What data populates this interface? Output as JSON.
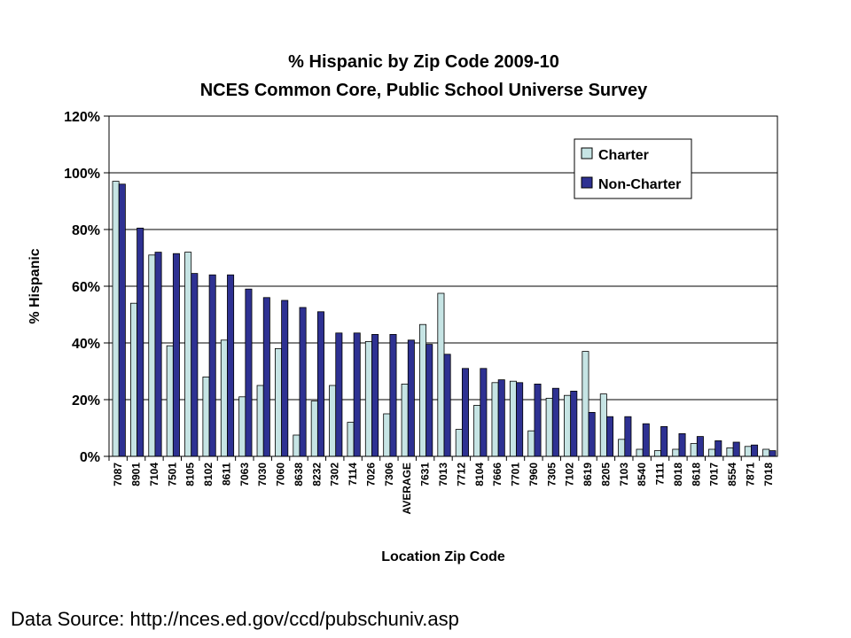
{
  "chart_data": {
    "type": "bar",
    "title": "% Hispanic by Zip Code 2009-10",
    "subtitle": "NCES Common Core, Public School Universe Survey",
    "xlabel": "Location Zip Code",
    "ylabel": "% Hispanic",
    "ylim": [
      0,
      120
    ],
    "yticks": [
      "0%",
      "20%",
      "40%",
      "60%",
      "80%",
      "100%",
      "120%"
    ],
    "grid": true,
    "legend": "top-right",
    "categories": [
      "7087",
      "8901",
      "7104",
      "7501",
      "8105",
      "8102",
      "8611",
      "7063",
      "7030",
      "7060",
      "8638",
      "8232",
      "7302",
      "7114",
      "7026",
      "7306",
      "AVERAGE",
      "7631",
      "7013",
      "7712",
      "8104",
      "7666",
      "7701",
      "7960",
      "7305",
      "7102",
      "8619",
      "8205",
      "7103",
      "8540",
      "7111",
      "8018",
      "8618",
      "7017",
      "8554",
      "7871",
      "7018"
    ],
    "series": [
      {
        "name": "Charter",
        "color": "#c6e4e4",
        "values": [
          97,
          54,
          71,
          39,
          72,
          28,
          41,
          21,
          25,
          38,
          7.5,
          19.5,
          25,
          12,
          40.5,
          15,
          25.5,
          46.5,
          57.5,
          9.5,
          18,
          26,
          26.5,
          9,
          20.5,
          21.5,
          37,
          22,
          6,
          2.5,
          2,
          2.5,
          4.5,
          2.5,
          3,
          3.5,
          2.5
        ]
      },
      {
        "name": "Non-Charter",
        "color": "#2e3192",
        "values": [
          96,
          80.5,
          72,
          71.5,
          64.5,
          64,
          64,
          59,
          56,
          55,
          52.5,
          51,
          43.5,
          43.5,
          43,
          43,
          41,
          39.5,
          36,
          31,
          31,
          27,
          26,
          25.5,
          24,
          23,
          15.5,
          14,
          14,
          11.5,
          10.5,
          8,
          7,
          5.5,
          5,
          4,
          2
        ]
      }
    ]
  },
  "footer": {
    "source": "Data Source: http://nces.ed.gov/ccd/pubschuniv.asp"
  }
}
